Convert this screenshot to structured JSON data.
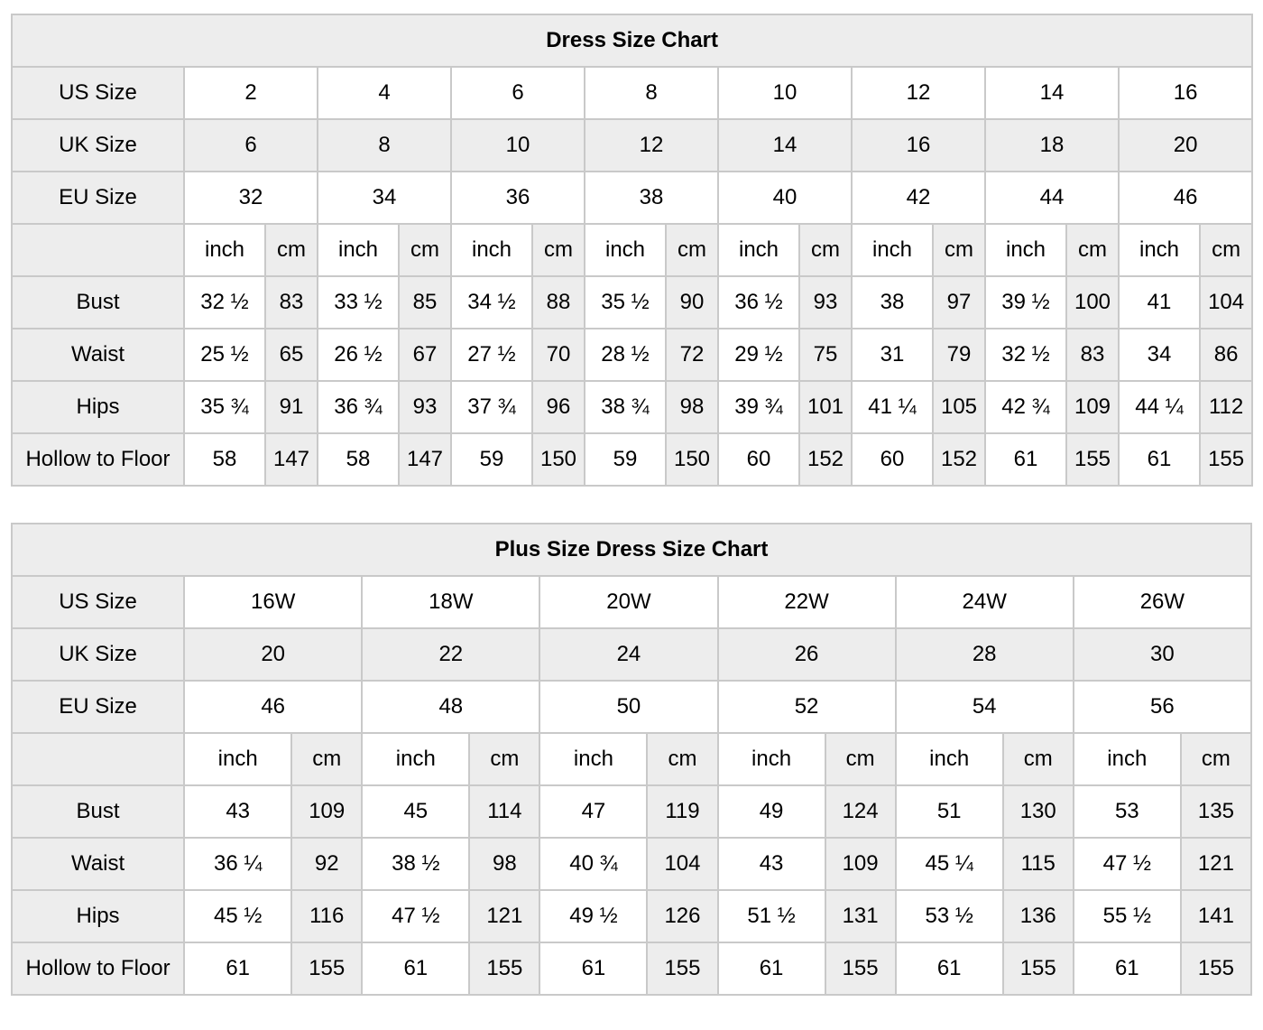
{
  "colors": {
    "shaded_cell_bg": "#ededed",
    "plain_cell_bg": "#ffffff",
    "border": "#c9c9c9",
    "text": "#000000"
  },
  "chart_data": [
    {
      "type": "table",
      "title": "Dress Size Chart",
      "size_rows": [
        {
          "label": "US Size",
          "values": [
            "2",
            "4",
            "6",
            "8",
            "10",
            "12",
            "14",
            "16"
          ]
        },
        {
          "label": "UK Size",
          "values": [
            "6",
            "8",
            "10",
            "12",
            "14",
            "16",
            "18",
            "20"
          ]
        },
        {
          "label": "EU Size",
          "values": [
            "32",
            "34",
            "36",
            "38",
            "40",
            "42",
            "44",
            "46"
          ]
        }
      ],
      "unit_row": {
        "inch": "inch",
        "cm": "cm"
      },
      "measure_rows": [
        {
          "label": "Bust",
          "inch": [
            "32 ½",
            "33 ½",
            "34 ½",
            "35 ½",
            "36 ½",
            "38",
            "39 ½",
            "41"
          ],
          "cm": [
            "83",
            "85",
            "88",
            "90",
            "93",
            "97",
            "100",
            "104"
          ]
        },
        {
          "label": "Waist",
          "inch": [
            "25 ½",
            "26 ½",
            "27 ½",
            "28 ½",
            "29 ½",
            "31",
            "32 ½",
            "34"
          ],
          "cm": [
            "65",
            "67",
            "70",
            "72",
            "75",
            "79",
            "83",
            "86"
          ]
        },
        {
          "label": "Hips",
          "inch": [
            "35 ¾",
            "36 ¾",
            "37 ¾",
            "38 ¾",
            "39 ¾",
            "41 ¼",
            "42 ¾",
            "44 ¼"
          ],
          "cm": [
            "91",
            "93",
            "96",
            "98",
            "101",
            "105",
            "109",
            "112"
          ]
        },
        {
          "label": "Hollow to Floor",
          "inch": [
            "58",
            "58",
            "59",
            "59",
            "60",
            "60",
            "61",
            "61"
          ],
          "cm": [
            "147",
            "147",
            "150",
            "150",
            "152",
            "152",
            "155",
            "155"
          ]
        }
      ]
    },
    {
      "type": "table",
      "title": "Plus Size Dress Size Chart",
      "size_rows": [
        {
          "label": "US Size",
          "values": [
            "16W",
            "18W",
            "20W",
            "22W",
            "24W",
            "26W"
          ]
        },
        {
          "label": "UK Size",
          "values": [
            "20",
            "22",
            "24",
            "26",
            "28",
            "30"
          ]
        },
        {
          "label": "EU Size",
          "values": [
            "46",
            "48",
            "50",
            "52",
            "54",
            "56"
          ]
        }
      ],
      "unit_row": {
        "inch": "inch",
        "cm": "cm"
      },
      "measure_rows": [
        {
          "label": "Bust",
          "inch": [
            "43",
            "45",
            "47",
            "49",
            "51",
            "53"
          ],
          "cm": [
            "109",
            "114",
            "119",
            "124",
            "130",
            "135"
          ]
        },
        {
          "label": "Waist",
          "inch": [
            "36 ¼",
            "38 ½",
            "40 ¾",
            "43",
            "45 ¼",
            "47 ½"
          ],
          "cm": [
            "92",
            "98",
            "104",
            "109",
            "115",
            "121"
          ]
        },
        {
          "label": "Hips",
          "inch": [
            "45 ½",
            "47 ½",
            "49 ½",
            "51 ½",
            "53 ½",
            "55 ½"
          ],
          "cm": [
            "116",
            "121",
            "126",
            "131",
            "136",
            "141"
          ]
        },
        {
          "label": "Hollow to Floor",
          "inch": [
            "61",
            "61",
            "61",
            "61",
            "61",
            "61"
          ],
          "cm": [
            "155",
            "155",
            "155",
            "155",
            "155",
            "155"
          ]
        }
      ]
    }
  ]
}
